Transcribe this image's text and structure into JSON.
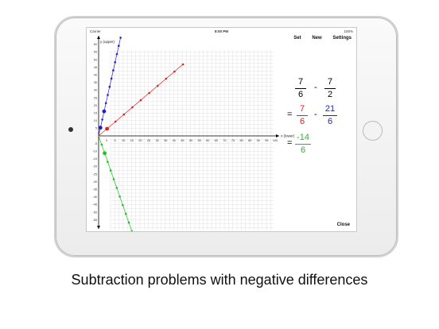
{
  "caption": "Subtraction problems with negative differences",
  "status": {
    "carrier": "Carrier",
    "time": "8:00 PM",
    "battery": "100%"
  },
  "toolbar": {
    "set": "Set",
    "new": "New",
    "settings": "Settings"
  },
  "close_label": "Close",
  "graph": {
    "y_axis_label": "y (upper)",
    "x_axis_label": "x (lower)",
    "x_ticks": [
      "0",
      "5",
      "10",
      "15",
      "20",
      "25",
      "30",
      "35",
      "40",
      "45",
      "50",
      "55",
      "60",
      "65",
      "70",
      "75",
      "80",
      "85",
      "90",
      "95",
      "100"
    ],
    "y_ticks_pos": [
      "5",
      "10",
      "15",
      "20",
      "25",
      "30",
      "35",
      "40",
      "45",
      "50",
      "55",
      "60"
    ],
    "y_ticks_neg": [
      "-5",
      "-10",
      "-15",
      "-20",
      "-25",
      "-30",
      "-35",
      "-40",
      "-45",
      "-50",
      "-55"
    ],
    "colors": {
      "blue": "#2020d0",
      "red": "#e02020",
      "green": "#20c020"
    }
  },
  "problem": {
    "a": {
      "num": "7",
      "den": "6"
    },
    "minus": "-",
    "b": {
      "num": "7",
      "den": "2"
    },
    "eq1": "=",
    "c": {
      "num": "7",
      "den": "6",
      "color": "#e02020"
    },
    "minus2": "-",
    "d": {
      "num": "21",
      "den": "6",
      "color": "#2020d0"
    },
    "eq2": "=",
    "result": {
      "num": "-14",
      "den": "6",
      "color": "#20c020"
    }
  }
}
